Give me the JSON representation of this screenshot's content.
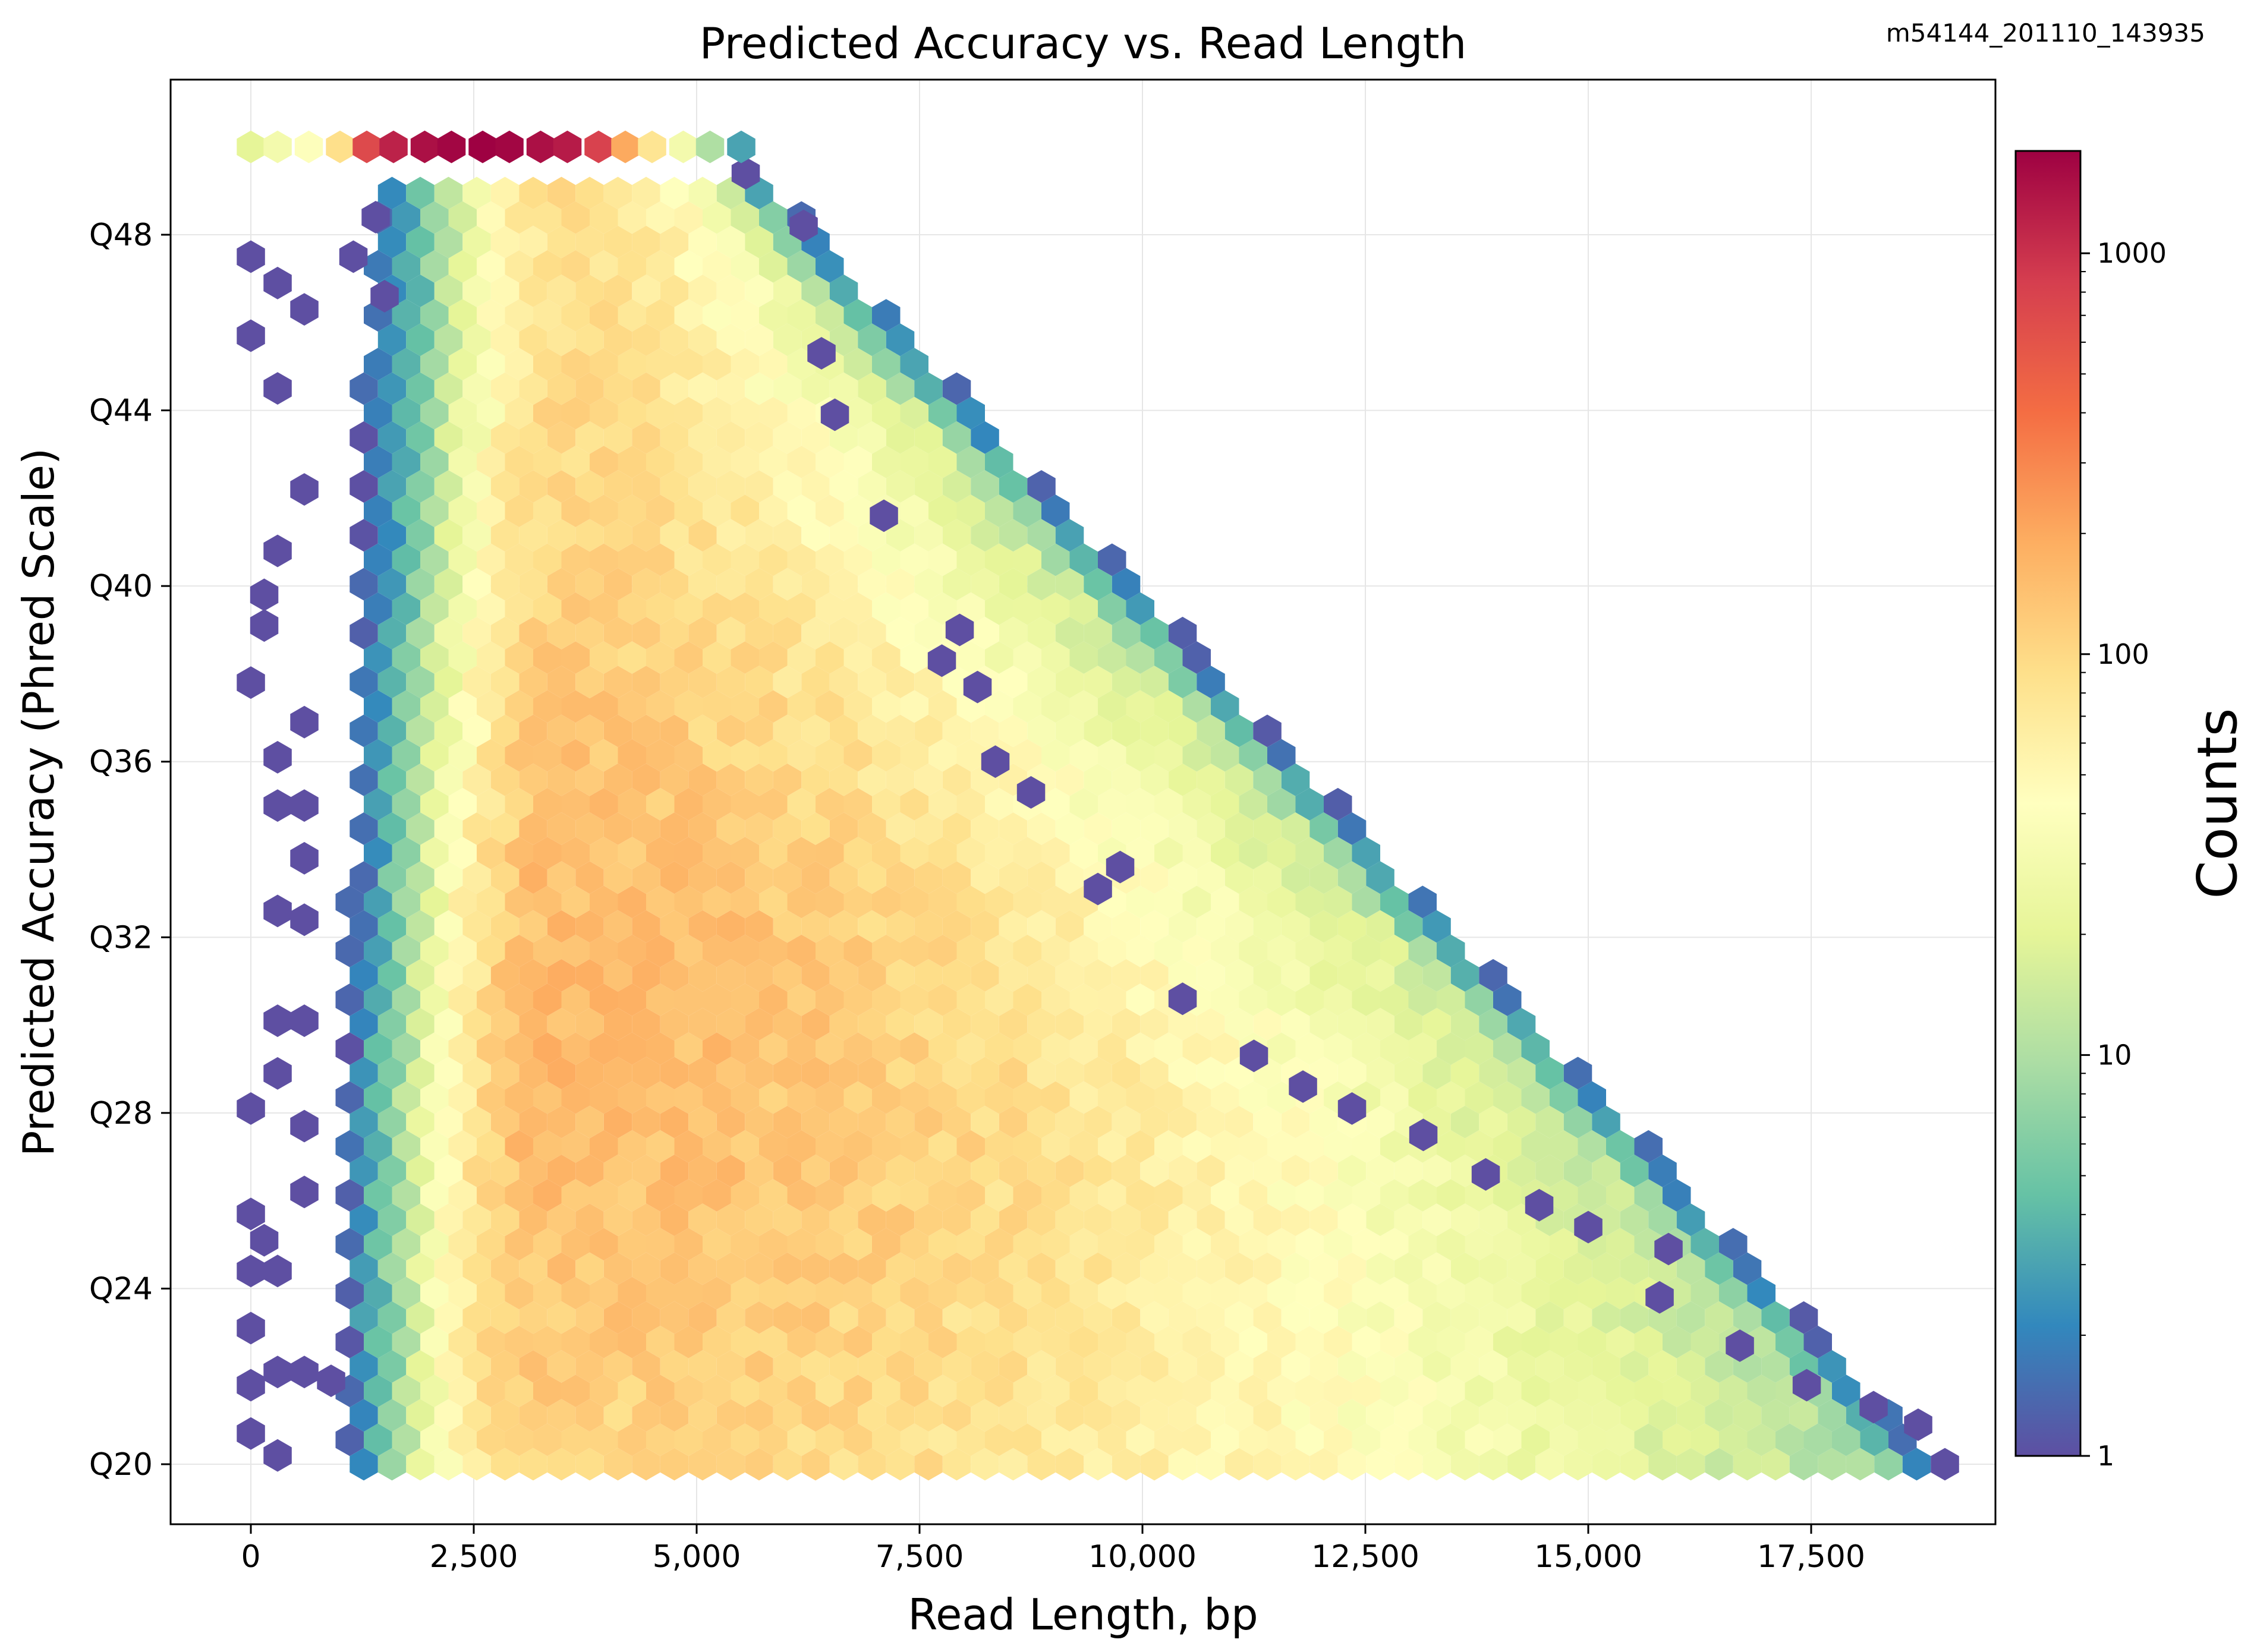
{
  "figure": {
    "run_id": "m54144_201110_143935"
  },
  "chart_data": {
    "type": "heatmap",
    "subtype": "hexbin",
    "title": "Predicted Accuracy vs. Read Length",
    "xlabel": "Read Length, bp",
    "ylabel": "Predicted Accuracy (Phred Scale)",
    "xlim": [
      -900,
      20000
    ],
    "ylim": [
      18.5,
      53.5
    ],
    "x_ticks": [
      0,
      2500,
      5000,
      7500,
      10000,
      12500,
      15000,
      17500
    ],
    "x_tick_labels": [
      "0",
      "2,500",
      "5,000",
      "7,500",
      "10,000",
      "12,500",
      "15,000",
      "17,500"
    ],
    "y_ticks": [
      20,
      24,
      28,
      32,
      36,
      40,
      44,
      48
    ],
    "y_tick_labels": [
      "Q20",
      "Q24",
      "Q28",
      "Q32",
      "Q36",
      "Q40",
      "Q44",
      "Q48"
    ],
    "grid": true,
    "colorbar": {
      "label": "Counts",
      "scale": "log",
      "min": 1,
      "max": 1800,
      "ticks": [
        1,
        10,
        100,
        1000
      ],
      "tick_labels": [
        "1",
        "10",
        "100",
        "1000"
      ],
      "colormap": "Spectral_r",
      "colors": [
        "#5e4fa2",
        "#3288bd",
        "#66c2a5",
        "#abdda4",
        "#e6f598",
        "#ffffbf",
        "#fee08b",
        "#fdae61",
        "#f46d43",
        "#d53e4f",
        "#9e0142"
      ]
    },
    "hexbin": {
      "gridsize_x": 60,
      "x_extent": [
        0,
        19000
      ],
      "y_extent": [
        20,
        50
      ]
    },
    "density_model": {
      "description": "approximate hexbin counts read from figure",
      "core_peak_count": 160,
      "core_center_x": 3100,
      "top_row_q": 50,
      "top_row_peak_count": 1800,
      "top_row_peak_x": 2500,
      "max_length_at_q20": 19000,
      "max_length_at_q50": 5600,
      "min_length_dense": 1100
    },
    "cap_row": {
      "y": 50,
      "x": [
        0,
        300,
        650,
        1000,
        1300,
        1600,
        1950,
        2250,
        2600,
        2900,
        3250,
        3550,
        3900,
        4200,
        4500,
        4850,
        5150,
        5500
      ],
      "counts": [
        20,
        30,
        40,
        90,
        700,
        1200,
        1500,
        1700,
        1800,
        1700,
        1500,
        1300,
        800,
        200,
        80,
        30,
        10,
        3
      ]
    },
    "sparse_hexes": [
      {
        "x": 0,
        "y": 20.7
      },
      {
        "x": 300,
        "y": 20.2
      },
      {
        "x": 0,
        "y": 21.8
      },
      {
        "x": 300,
        "y": 22.1
      },
      {
        "x": 600,
        "y": 22.1
      },
      {
        "x": 900,
        "y": 21.9
      },
      {
        "x": 0,
        "y": 23.1
      },
      {
        "x": 0,
        "y": 24.4
      },
      {
        "x": 300,
        "y": 24.4
      },
      {
        "x": 150,
        "y": 25.1
      },
      {
        "x": 0,
        "y": 25.7
      },
      {
        "x": 0,
        "y": 28.1
      },
      {
        "x": 600,
        "y": 26.2
      },
      {
        "x": 600,
        "y": 27.7
      },
      {
        "x": 300,
        "y": 28.9
      },
      {
        "x": 300,
        "y": 30.1
      },
      {
        "x": 600,
        "y": 30.1
      },
      {
        "x": 600,
        "y": 32.4
      },
      {
        "x": 300,
        "y": 32.6
      },
      {
        "x": 600,
        "y": 33.8
      },
      {
        "x": 300,
        "y": 35.0
      },
      {
        "x": 600,
        "y": 35.0
      },
      {
        "x": 300,
        "y": 36.1
      },
      {
        "x": 600,
        "y": 36.9
      },
      {
        "x": 0,
        "y": 37.8
      },
      {
        "x": 150,
        "y": 39.1
      },
      {
        "x": 150,
        "y": 39.8
      },
      {
        "x": 300,
        "y": 40.8
      },
      {
        "x": 600,
        "y": 42.2
      },
      {
        "x": 300,
        "y": 44.5
      },
      {
        "x": 0,
        "y": 45.7
      },
      {
        "x": 300,
        "y": 46.9
      },
      {
        "x": 600,
        "y": 46.3
      },
      {
        "x": 0,
        "y": 47.5
      },
      {
        "x": 1150,
        "y": 47.5
      },
      {
        "x": 6400,
        "y": 45.3
      },
      {
        "x": 6550,
        "y": 43.9
      },
      {
        "x": 7100,
        "y": 41.6
      },
      {
        "x": 7950,
        "y": 39.0
      },
      {
        "x": 7750,
        "y": 38.3
      },
      {
        "x": 8150,
        "y": 37.7
      },
      {
        "x": 8350,
        "y": 36.0
      },
      {
        "x": 8750,
        "y": 35.3
      },
      {
        "x": 9750,
        "y": 33.6
      },
      {
        "x": 9500,
        "y": 33.1
      },
      {
        "x": 10450,
        "y": 30.6
      },
      {
        "x": 11250,
        "y": 29.3
      },
      {
        "x": 11800,
        "y": 28.6
      },
      {
        "x": 12350,
        "y": 28.1
      },
      {
        "x": 13150,
        "y": 27.5
      },
      {
        "x": 13850,
        "y": 26.6
      },
      {
        "x": 14450,
        "y": 25.9
      },
      {
        "x": 15000,
        "y": 25.4
      },
      {
        "x": 15900,
        "y": 24.9
      },
      {
        "x": 15800,
        "y": 23.8
      },
      {
        "x": 16700,
        "y": 22.7
      },
      {
        "x": 6200,
        "y": 48.2
      },
      {
        "x": 5550,
        "y": 49.4
      },
      {
        "x": 17450,
        "y": 21.8
      },
      {
        "x": 18200,
        "y": 21.3
      },
      {
        "x": 18700,
        "y": 20.9
      },
      {
        "x": 19000,
        "y": 20.0
      },
      {
        "x": 1500,
        "y": 46.6
      },
      {
        "x": 1400,
        "y": 48.4
      }
    ]
  }
}
